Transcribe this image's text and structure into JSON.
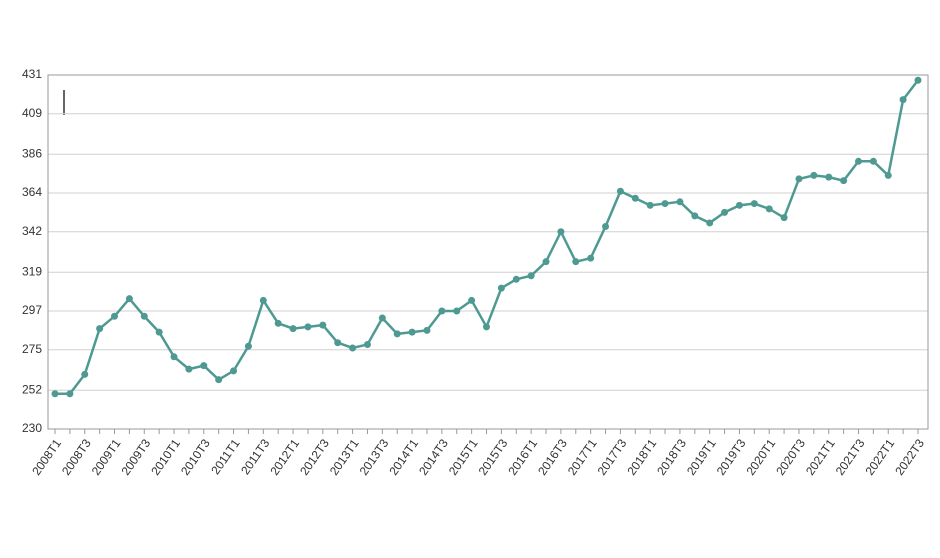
{
  "chart_data": {
    "type": "line",
    "categories": [
      "2008T1",
      null,
      "2008T3",
      null,
      "2009T1",
      null,
      "2009T3",
      null,
      "2010T1",
      null,
      "2010T3",
      null,
      "2011T1",
      null,
      "2011T3",
      null,
      "2012T1",
      null,
      "2012T3",
      null,
      "2013T1",
      null,
      "2013T3",
      null,
      "2014T1",
      null,
      "2014T3",
      null,
      "2015T1",
      null,
      "2015T3",
      null,
      "2016T1",
      null,
      "2016T3",
      null,
      "2017T1",
      null,
      "2017T3",
      null,
      "2018T1",
      null,
      "2018T3",
      null,
      "2019T1",
      null,
      "2019T3",
      null,
      "2020T1",
      null,
      "2020T3",
      null,
      "2021T1",
      null,
      "2021T3",
      null,
      "2022T1",
      null,
      "2022T3"
    ],
    "series": [
      {
        "color": "#4e9a92",
        "values": [
          250,
          250,
          261,
          287,
          294,
          304,
          294,
          285,
          271,
          264,
          266,
          258,
          263,
          277,
          303,
          290,
          287,
          288,
          289,
          279,
          276,
          278,
          293,
          284,
          285,
          286,
          297,
          297,
          303,
          288,
          310,
          315,
          317,
          325,
          342,
          325,
          327,
          345,
          365,
          361,
          357,
          358,
          359,
          351,
          347,
          353,
          357,
          358,
          355,
          350,
          372,
          374,
          373,
          371,
          382,
          382,
          374,
          417,
          428
        ]
      }
    ],
    "ylim": [
      230,
      431
    ],
    "yticks": [
      230,
      252,
      275,
      297,
      319,
      342,
      364,
      386,
      409,
      431
    ],
    "grid": true
  }
}
